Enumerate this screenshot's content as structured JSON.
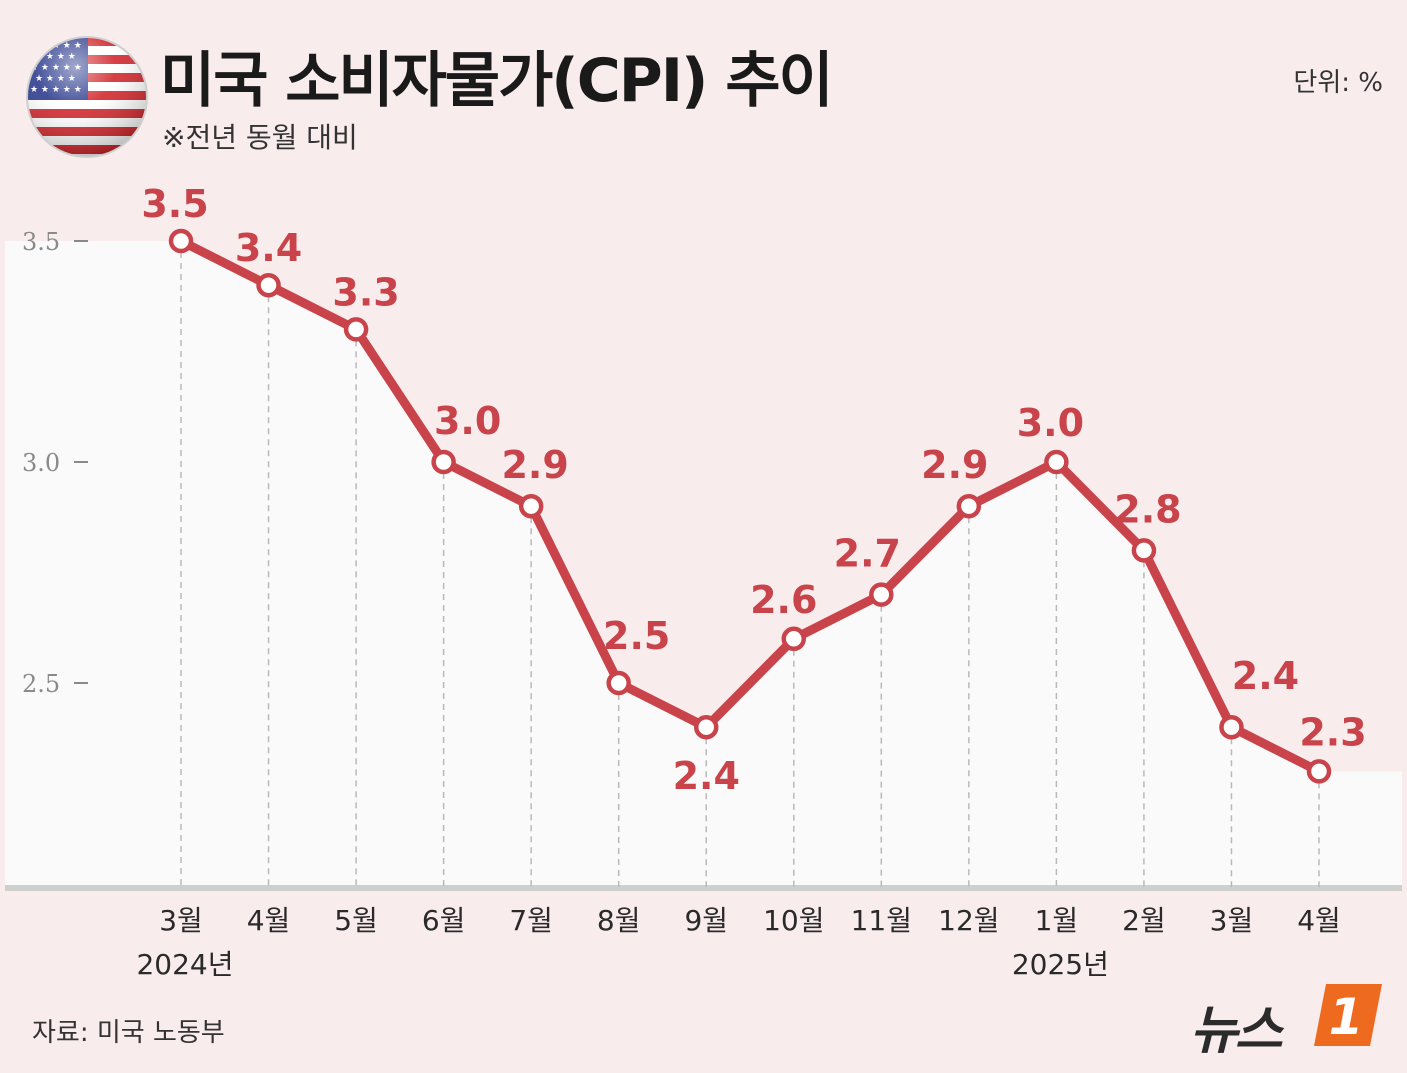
{
  "header": {
    "title": "미국 소비자물가(CPI) 추이",
    "subtitle": "※전년 동월 대비",
    "unit": "단위: %"
  },
  "footer": {
    "source": "자료: 미국 노동부",
    "logo_text": "뉴스",
    "logo_badge": "1"
  },
  "colors": {
    "line": "#c9434a",
    "label": "#c9434a",
    "background": "#f9eced",
    "plot_area": "#fafafa"
  },
  "chart_data": {
    "type": "line",
    "title": "미국 소비자물가(CPI) 추이",
    "xlabel": "",
    "ylabel": "",
    "categories": [
      "3월",
      "4월",
      "5월",
      "6월",
      "7월",
      "8월",
      "9월",
      "10월",
      "11월",
      "12월",
      "1월",
      "2월",
      "3월",
      "4월"
    ],
    "year_labels": [
      {
        "index": 0,
        "label": "2024년"
      },
      {
        "index": 10,
        "label": "2025년"
      }
    ],
    "series": [
      {
        "values": [
          3.5,
          3.4,
          3.3,
          3.0,
          2.9,
          2.5,
          2.4,
          2.6,
          2.7,
          2.9,
          3.0,
          2.8,
          2.4,
          2.3
        ]
      }
    ],
    "value_labels": [
      "3.5",
      "3.4",
      "3.3",
      "3.0",
      "2.9",
      "2.5",
      "2.4",
      "2.6",
      "2.7",
      "2.9",
      "3.0",
      "2.8",
      "2.4",
      "2.3"
    ],
    "yticks": [
      2.5,
      3.0,
      3.5
    ],
    "ytick_labels": [
      "2.5",
      "3.0",
      "3.5"
    ],
    "ylim": [
      2.05,
      3.6
    ],
    "grid": false,
    "legend": "none"
  }
}
